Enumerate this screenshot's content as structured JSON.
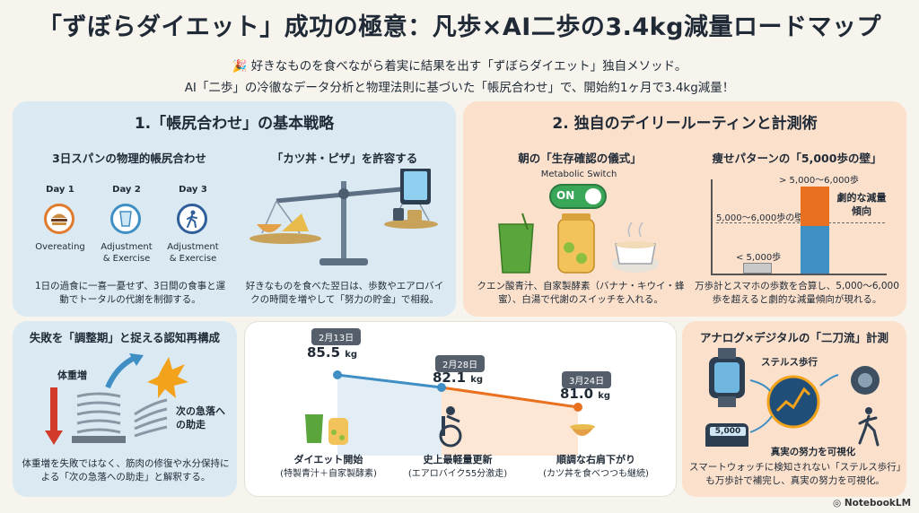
{
  "header": {
    "title": "「ずぼらダイエット」成功の極意：凡歩×AI二歩の3.4kg減量ロードマップ",
    "line1": "🎉 好きなものを食べながら着実に結果を出す「ずぼらダイエット」独自メソッド。",
    "line2": "AI「二歩」の冷徹なデータ分析と物理法則に基づいた「帳尻合わせ」で、開始約1ヶ月で3.4kg減量！"
  },
  "section1": {
    "title": "1.「帳尻合わせ」の基本戦略",
    "left": {
      "title": "3日スパンの物理的帳尻合わせ",
      "days": [
        {
          "day": "Day 1",
          "label": "Overeating"
        },
        {
          "day": "Day 2",
          "label": "Adjustment\n& Exercise"
        },
        {
          "day": "Day 3",
          "label": "Adjustment\n& Exercise"
        }
      ],
      "caption": "1日の過食に一喜一憂せず、3日間の食事と運動でトータルの代謝を制御する。"
    },
    "right": {
      "title": "「カツ丼・ピザ」を許容する",
      "caption": "好きなものを食べた翌日は、歩数やエアロバイクの時間を増やして「努力の貯金」で相殺。"
    },
    "bottom": {
      "title": "失敗を「調整期」と捉える認知再構成",
      "label_up": "体重増",
      "label_down": "次の急落への助走",
      "caption": "体重増を失敗ではなく、筋肉の修復や水分保持による「次の急落への助走」と解釈する。"
    }
  },
  "section2": {
    "title": "2. 独自のデイリールーティンと計測術",
    "left": {
      "title": "朝の「生存確認の儀式」",
      "switch_label": "Metabolic Switch",
      "switch_state": "ON",
      "caption": "クエン酸青汁、自家製酵素（バナナ・キウイ・蜂蜜）、白湯で代謝のスイッチを入れる。"
    },
    "right": {
      "title": "痩せパターンの「5,000歩の壁」",
      "bar_top_label": "> 5,000〜6,000歩",
      "threshold_label": "5,000〜6,000歩の壁",
      "low_label": "< 5,000歩",
      "trend_label": "劇的な減量傾向",
      "caption": "万歩計とスマホの歩数を合算し、5,000〜6,000歩を超えると劇的な減量傾向が現れる。"
    },
    "bottom": {
      "title": "アナログ×デジタルの「二刀流」計測",
      "stealth_label": "ステルス歩行",
      "pedometer": "5,000",
      "effort_label": "真実の努力を可視化",
      "caption": "スマートウォッチに検知されない「ステルス歩行」も万歩計で補完し、真実の努力を可視化。"
    }
  },
  "timeline": {
    "points": [
      {
        "date": "2月13日",
        "weight": "85.5",
        "unit": "kg",
        "label": "ダイエット開始",
        "sub": "(特製青汁＋自家製酵素)"
      },
      {
        "date": "2月28日",
        "weight": "82.1",
        "unit": "kg",
        "label": "史上最軽量更新",
        "sub": "(エアロバイク55分激走)"
      },
      {
        "date": "3月24日",
        "weight": "81.0",
        "unit": "kg",
        "label": "順調な右肩下がり",
        "sub": "(カツ丼を食べつつも継続)"
      }
    ]
  },
  "footer": {
    "brand": "NotebookLM"
  },
  "colors": {
    "accent_orange": "#e07a2c",
    "accent_blue": "#3f8fc4",
    "text": "#1f2a36"
  }
}
